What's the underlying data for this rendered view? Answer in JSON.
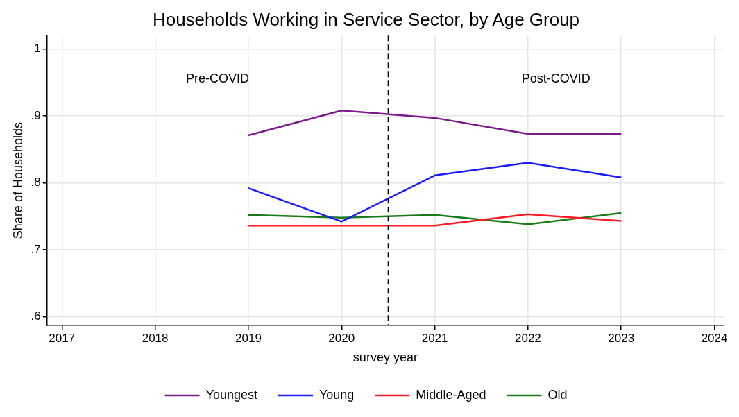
{
  "chart_data": {
    "type": "line",
    "title": "Households Working in Service Sector, by Age Group",
    "xlabel": "survey year",
    "ylabel": "Share of Households",
    "x": [
      2019,
      2020,
      2021,
      2022,
      2023
    ],
    "series": [
      {
        "name": "Youngest",
        "color": "#7b1a8a",
        "values": [
          0.871,
          0.908,
          0.897,
          0.873,
          0.873
        ]
      },
      {
        "name": "Young",
        "color": "#1a1aff",
        "values": [
          0.792,
          0.742,
          0.811,
          0.83,
          0.808
        ]
      },
      {
        "name": "Middle-Aged",
        "color": "#ff1a24",
        "values": [
          0.736,
          0.736,
          0.736,
          0.753,
          0.743
        ]
      },
      {
        "name": "Old",
        "color": "#1a7a1a",
        "values": [
          0.752,
          0.748,
          0.752,
          0.738,
          0.755
        ]
      }
    ],
    "xlim": [
      2016.84,
      2024.1
    ],
    "xticks": [
      2017,
      2018,
      2019,
      2020,
      2021,
      2022,
      2023,
      2024
    ],
    "ylim": [
      0.587,
      1.02
    ],
    "yticks": [
      {
        "value": 0.6,
        "label": ".6"
      },
      {
        "value": 0.7,
        "label": ".7"
      },
      {
        "value": 0.8,
        "label": ".8"
      },
      {
        "value": 0.9,
        "label": ".9"
      },
      1
    ],
    "ref_lines": [
      {
        "axis": "x",
        "value": 2020.5,
        "color": "#000000",
        "line_style": "dashed"
      }
    ],
    "annotations": [
      "Pre-COVID",
      "Post-COVID"
    ],
    "grid": true,
    "legend": "bottom",
    "marker": "none",
    "line_style": "solid"
  }
}
